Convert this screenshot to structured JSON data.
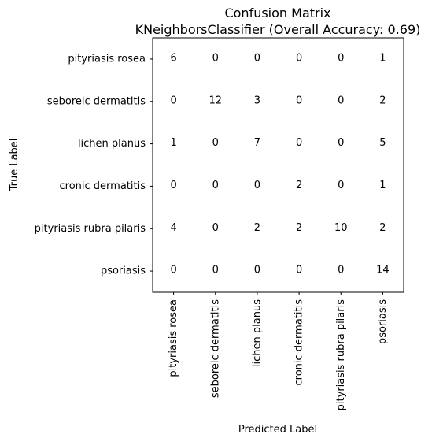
{
  "chart_data": {
    "type": "heatmap",
    "title": "Confusion Matrix",
    "subtitle": "KNeighborsClassifier (Overall Accuracy: 0.69)",
    "xlabel": "Predicted Label",
    "ylabel": "True Label",
    "row_labels": [
      "pityriasis rosea",
      "seboreic dermatitis",
      "lichen planus",
      "cronic dermatitis",
      "pityriasis rubra pilaris",
      "psoriasis"
    ],
    "col_labels": [
      "pityriasis rosea",
      "seboreic dermatitis",
      "lichen planus",
      "cronic dermatitis",
      "pityriasis rubra pilaris",
      "psoriasis"
    ],
    "values": [
      [
        6,
        0,
        0,
        0,
        0,
        1
      ],
      [
        0,
        12,
        3,
        0,
        0,
        2
      ],
      [
        1,
        0,
        7,
        0,
        0,
        5
      ],
      [
        0,
        0,
        0,
        2,
        0,
        1
      ],
      [
        4,
        0,
        2,
        2,
        10,
        2
      ],
      [
        0,
        0,
        0,
        0,
        0,
        14
      ]
    ],
    "colors": {
      "cell_fill": "#ffffff",
      "frame": "#000000",
      "text": "#000000"
    },
    "grid": false
  }
}
